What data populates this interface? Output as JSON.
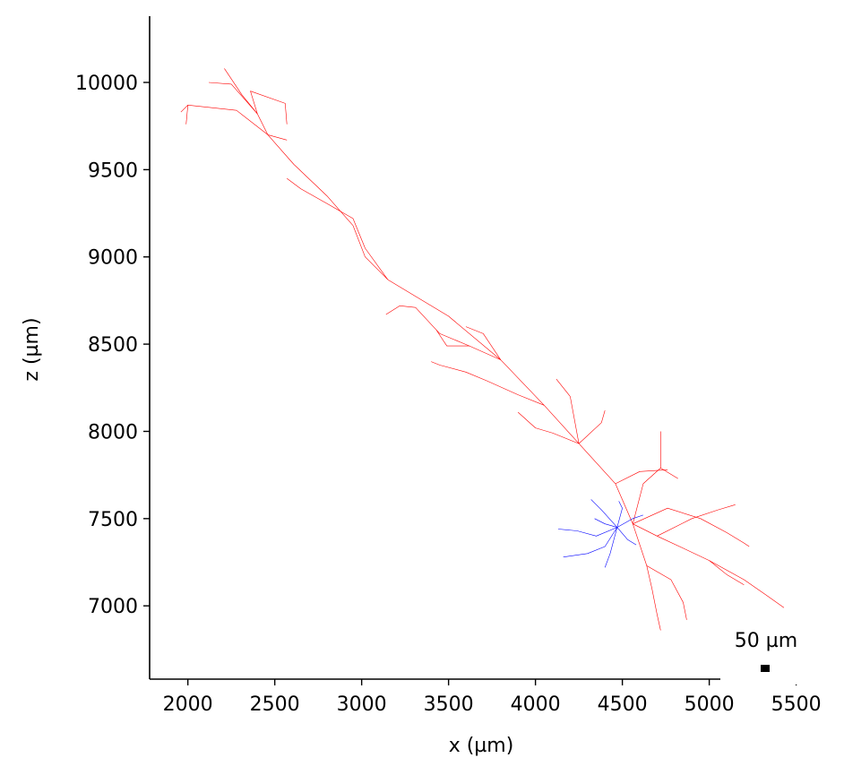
{
  "chart_data": {
    "type": "line",
    "title": "",
    "xlabel": "x (µm)",
    "ylabel": "z (µm)",
    "xlim": [
      1780,
      5600
    ],
    "ylim": [
      6580,
      10380
    ],
    "xticks": [
      2000,
      2500,
      3000,
      3500,
      4000,
      4500,
      5000,
      5500
    ],
    "yticks": [
      7000,
      7500,
      8000,
      8500,
      9000,
      9500,
      10000
    ],
    "grid": false,
    "legend": "none",
    "scale_bar": {
      "label": "50 µm",
      "length": 50,
      "x": 5310,
      "y": 6620
    },
    "series": [
      {
        "color": "#ff0000",
        "branches": [
          [
            [
              4560,
              7470
            ],
            [
              4460,
              7700
            ],
            [
              4250,
              7930
            ],
            [
              4050,
              8150
            ],
            [
              3800,
              8410
            ],
            [
              3500,
              8660
            ],
            [
              3150,
              8870
            ]
          ],
          [
            [
              3150,
              8870
            ],
            [
              3020,
              9000
            ],
            [
              2950,
              9180
            ],
            [
              2800,
              9350
            ],
            [
              2610,
              9530
            ],
            [
              2460,
              9700
            ],
            [
              2280,
              9840
            ],
            [
              2000,
              9870
            ],
            [
              1960,
              9830
            ]
          ],
          [
            [
              2000,
              9870
            ],
            [
              1990,
              9760
            ]
          ],
          [
            [
              2460,
              9700
            ],
            [
              2400,
              9820
            ],
            [
              2310,
              9930
            ],
            [
              2210,
              10080
            ]
          ],
          [
            [
              2400,
              9820
            ],
            [
              2250,
              9990
            ],
            [
              2120,
              10000
            ]
          ],
          [
            [
              2400,
              9820
            ],
            [
              2360,
              9950
            ],
            [
              2560,
              9880
            ],
            [
              2570,
              9760
            ]
          ],
          [
            [
              3150,
              8870
            ],
            [
              3020,
              9050
            ],
            [
              2950,
              9220
            ],
            [
              2810,
              9300
            ],
            [
              2650,
              9390
            ],
            [
              2570,
              9450
            ]
          ],
          [
            [
              2460,
              9700
            ],
            [
              2570,
              9670
            ]
          ],
          [
            [
              3800,
              8410
            ],
            [
              3620,
              8490
            ],
            [
              3450,
              8560
            ],
            [
              3310,
              8710
            ],
            [
              3220,
              8720
            ],
            [
              3140,
              8670
            ]
          ],
          [
            [
              3620,
              8490
            ],
            [
              3490,
              8490
            ],
            [
              3430,
              8580
            ]
          ],
          [
            [
              3800,
              8410
            ],
            [
              3700,
              8560
            ],
            [
              3600,
              8600
            ]
          ],
          [
            [
              4050,
              8150
            ],
            [
              3900,
              8210
            ],
            [
              3720,
              8290
            ],
            [
              3600,
              8340
            ],
            [
              3450,
              8380
            ],
            [
              3400,
              8400
            ]
          ],
          [
            [
              4250,
              7930
            ],
            [
              4100,
              7990
            ],
            [
              4000,
              8020
            ],
            [
              3900,
              8110
            ]
          ],
          [
            [
              4250,
              7930
            ],
            [
              4200,
              8200
            ],
            [
              4120,
              8300
            ]
          ],
          [
            [
              4250,
              7930
            ],
            [
              4380,
              8050
            ],
            [
              4400,
              8120
            ]
          ],
          [
            [
              4560,
              7470
            ],
            [
              4700,
              7400
            ],
            [
              4850,
              7330
            ],
            [
              5000,
              7260
            ],
            [
              5200,
              7150
            ],
            [
              5330,
              7060
            ],
            [
              5430,
              6990
            ]
          ],
          [
            [
              4560,
              7470
            ],
            [
              4760,
              7560
            ],
            [
              4950,
              7500
            ],
            [
              5100,
              7420
            ],
            [
              5200,
              7360
            ],
            [
              5230,
              7340
            ]
          ],
          [
            [
              4560,
              7470
            ],
            [
              4640,
              7230
            ],
            [
              4670,
              7100
            ],
            [
              4700,
              6950
            ],
            [
              4720,
              6860
            ]
          ],
          [
            [
              4640,
              7230
            ],
            [
              4780,
              7150
            ],
            [
              4850,
              7020
            ],
            [
              4870,
              6920
            ]
          ],
          [
            [
              4560,
              7470
            ],
            [
              4620,
              7700
            ],
            [
              4720,
              7790
            ],
            [
              4820,
              7730
            ]
          ],
          [
            [
              4720,
              7790
            ],
            [
              4720,
              8000
            ]
          ],
          [
            [
              4460,
              7700
            ],
            [
              4600,
              7770
            ],
            [
              4760,
              7780
            ]
          ],
          [
            [
              4700,
              7400
            ],
            [
              4900,
              7500
            ],
            [
              5050,
              7550
            ],
            [
              5150,
              7580
            ]
          ],
          [
            [
              5000,
              7260
            ],
            [
              5100,
              7180
            ],
            [
              5200,
              7120
            ]
          ]
        ]
      },
      {
        "color": "#0000ff",
        "branches": [
          [
            [
              4470,
              7450
            ],
            [
              4380,
              7550
            ],
            [
              4320,
              7610
            ]
          ],
          [
            [
              4470,
              7450
            ],
            [
              4350,
              7400
            ],
            [
              4240,
              7430
            ],
            [
              4130,
              7440
            ]
          ],
          [
            [
              4470,
              7450
            ],
            [
              4400,
              7340
            ],
            [
              4300,
              7300
            ],
            [
              4160,
              7280
            ]
          ],
          [
            [
              4470,
              7450
            ],
            [
              4430,
              7300
            ],
            [
              4400,
              7220
            ]
          ],
          [
            [
              4470,
              7450
            ],
            [
              4560,
              7500
            ],
            [
              4620,
              7520
            ]
          ],
          [
            [
              4470,
              7450
            ],
            [
              4500,
              7560
            ],
            [
              4480,
              7600
            ]
          ],
          [
            [
              4470,
              7450
            ],
            [
              4530,
              7380
            ],
            [
              4580,
              7350
            ]
          ],
          [
            [
              4470,
              7450
            ],
            [
              4400,
              7470
            ],
            [
              4340,
              7500
            ]
          ]
        ]
      }
    ]
  }
}
